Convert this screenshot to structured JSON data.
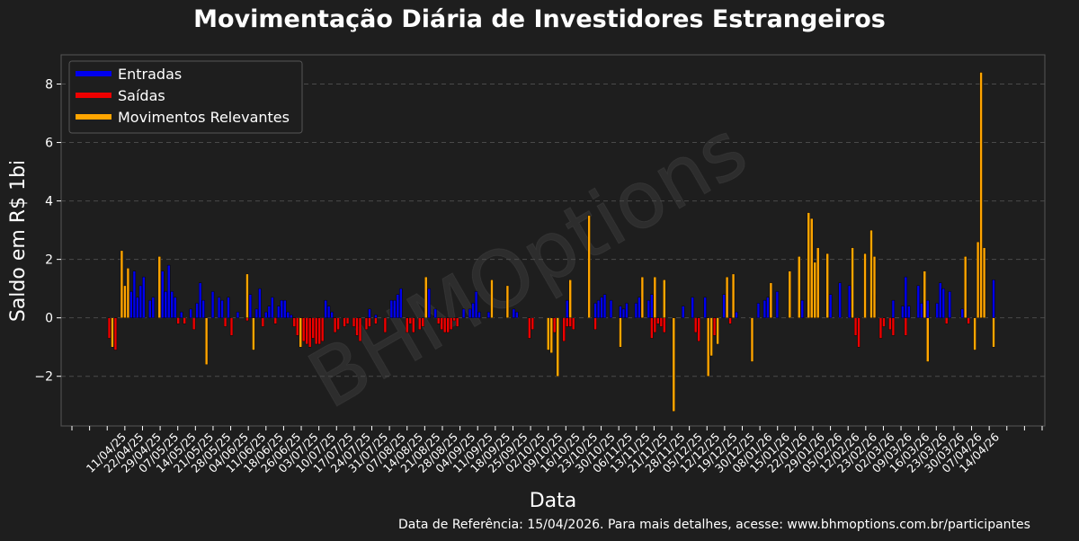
{
  "chart_data": {
    "type": "bar",
    "title": "Movimentação Diária de Investidores Estrangeiros",
    "xlabel": "Data",
    "ylabel": "Saldo em R$ 1bi",
    "ylim": [
      -3.7,
      9.0
    ],
    "yticks": [
      -2,
      0,
      2,
      4,
      6,
      8
    ],
    "ytick_labels": [
      "−2",
      "0",
      "2",
      "4",
      "6",
      "8"
    ],
    "grid": "horizontal-dashed",
    "legend_position": "top-left",
    "legend": [
      {
        "label": "Entradas",
        "color": "#0000ee"
      },
      {
        "label": "Saídas",
        "color": "#ee0000"
      },
      {
        "label": "Movimentos Relevantes",
        "color": "#ffa500"
      }
    ],
    "xtick_labels": [
      "11/04/25",
      "22/04/25",
      "29/04/25",
      "07/05/25",
      "14/05/25",
      "21/05/25",
      "28/05/25",
      "04/06/25",
      "11/06/25",
      "18/06/25",
      "26/06/25",
      "03/07/25",
      "10/07/25",
      "17/07/25",
      "24/07/25",
      "31/07/25",
      "07/08/25",
      "14/08/25",
      "21/08/25",
      "28/08/25",
      "04/09/25",
      "11/09/25",
      "18/09/25",
      "25/09/25",
      "02/10/25",
      "09/10/25",
      "16/10/25",
      "23/10/25",
      "30/10/25",
      "06/11/25",
      "13/11/25",
      "21/11/25",
      "28/11/25",
      "05/12/25",
      "12/12/25",
      "19/12/25",
      "30/12/25",
      "08/01/26",
      "15/01/26",
      "22/01/26",
      "29/01/26",
      "05/02/26",
      "12/02/26",
      "23/02/26",
      "02/03/26",
      "09/03/26",
      "16/03/26",
      "23/03/26",
      "30/03/26",
      "07/04/26",
      "14/04/26"
    ],
    "series": [
      {
        "name": "Entradas",
        "color": "#0000ee",
        "values": [
          0.0,
          0.0,
          0.0,
          0.0,
          0.0,
          0.0,
          0.0,
          0.0,
          0.9,
          1.6,
          0.7,
          1.1,
          1.4,
          0.0,
          0.6,
          0.7,
          0.0,
          0.0,
          1.6,
          0.9,
          1.8,
          0.9,
          0.7,
          0.0,
          0.2,
          0.0,
          0.0,
          0.3,
          0.0,
          0.5,
          1.2,
          0.6,
          0.0,
          0.0,
          0.9,
          0.0,
          0.7,
          0.6,
          0.0,
          0.7,
          0.0,
          0.0,
          0.2,
          0.0,
          0.0,
          0.0,
          0.8,
          0.0,
          0.3,
          1.0,
          0.0,
          0.2,
          0.4,
          0.7,
          0.0,
          0.4,
          0.6,
          0.6,
          0.2,
          0.1,
          0.0,
          0.0,
          0.0,
          0.0,
          0.0,
          0.0,
          0.0,
          0.0,
          0.0,
          0.0,
          0.6,
          0.4,
          0.2,
          0.0,
          0.0,
          0.0,
          0.0,
          0.0,
          0.0,
          0.0,
          0.0,
          0.0,
          0.0,
          0.0,
          0.3,
          0.0,
          0.1,
          0.0,
          0.0,
          0.0,
          0.0,
          0.6,
          0.6,
          0.8,
          1.0,
          0.0,
          0.0,
          0.0,
          0.0,
          0.0,
          0.0,
          0.0,
          0.0,
          1.0,
          0.0,
          0.3,
          0.0,
          0.0,
          0.0,
          0.0,
          0.0,
          0.0,
          0.0,
          0.0,
          0.3,
          0.0,
          0.3,
          0.5,
          0.9,
          0.2,
          0.0,
          0.0,
          0.2,
          0.3,
          0.0,
          0.0,
          0.0,
          0.0,
          0.5,
          0.0,
          0.3,
          0.2,
          0.0,
          0.0,
          0.0,
          0.0,
          0.0,
          0.0,
          0.0,
          0.0,
          0.0,
          0.0,
          0.0,
          0.0,
          0.0,
          0.0,
          0.0,
          0.6,
          0.0,
          0.0,
          0.0,
          0.0,
          0.0,
          0.0,
          0.0,
          0.0,
          0.5,
          0.6,
          0.7,
          0.8,
          0.0,
          0.6,
          0.0,
          0.0,
          0.4,
          0.3,
          0.5,
          0.0,
          0.0,
          0.5,
          0.7,
          0.8,
          0.0,
          0.6,
          0.8,
          0.0,
          0.0,
          0.0,
          0.0,
          0.0,
          0.0,
          0.0,
          0.0,
          0.0,
          0.4,
          0.0,
          0.0,
          0.7,
          0.0,
          0.0,
          0.0,
          0.7,
          0.0,
          0.0,
          0.0,
          0.0,
          0.0,
          0.8,
          0.0,
          0.0,
          0.0,
          0.2,
          0.0,
          0.0,
          0.0,
          0.0,
          0.0,
          0.0,
          0.5,
          0.0,
          0.6,
          0.7,
          0.7,
          0.0,
          0.9,
          0.0,
          0.0,
          0.0,
          0.0,
          0.0,
          0.0,
          1.1,
          0.6,
          0.0,
          0.0,
          0.0,
          0.0,
          1.3,
          0.0,
          0.0,
          0.5,
          0.8,
          0.0,
          0.0,
          1.2,
          0.0,
          0.0,
          1.1,
          0.4,
          0.0,
          0.0,
          0.0,
          0.0,
          0.0,
          0.0,
          0.8,
          0.0,
          0.0,
          0.0,
          0.0,
          0.0,
          0.6,
          0.0,
          0.0,
          0.4,
          1.4,
          0.4,
          0.0,
          0.0,
          1.1,
          0.5,
          0.6,
          0.6,
          0.0,
          0.0,
          0.5,
          1.2,
          1.0,
          0.0,
          0.9,
          0.0,
          0.0,
          0.0,
          0.3,
          0.0,
          0.0,
          0.0,
          0.0,
          0.0,
          0.0,
          0.0,
          0.0,
          0.0,
          1.3,
          0.0,
          0.0
        ]
      },
      {
        "name": "Saídas",
        "color": "#ee0000",
        "values": [
          0.0,
          -0.7,
          0.0,
          -1.1,
          0.0,
          0.0,
          0.0,
          0.0,
          0.0,
          0.0,
          0.0,
          0.0,
          0.0,
          0.0,
          0.0,
          0.0,
          0.0,
          0.0,
          0.0,
          0.0,
          0.0,
          0.0,
          0.0,
          -0.2,
          0.0,
          -0.2,
          0.0,
          0.0,
          -0.4,
          0.0,
          0.0,
          0.0,
          0.0,
          0.0,
          0.0,
          0.0,
          0.0,
          0.0,
          -0.3,
          0.0,
          -0.6,
          0.0,
          0.0,
          0.0,
          0.0,
          -0.1,
          0.0,
          0.0,
          0.0,
          0.0,
          -0.3,
          0.0,
          0.0,
          0.0,
          -0.2,
          0.0,
          0.0,
          0.0,
          0.0,
          0.0,
          -0.3,
          -0.6,
          0.0,
          -0.8,
          -0.9,
          -1.0,
          -0.7,
          -0.9,
          -0.9,
          -0.8,
          0.0,
          0.0,
          0.0,
          -0.5,
          -0.4,
          0.0,
          -0.3,
          -0.2,
          0.0,
          -0.3,
          -0.6,
          -0.8,
          0.0,
          -0.4,
          -0.3,
          0.0,
          -0.2,
          0.0,
          0.0,
          -0.5,
          0.0,
          0.0,
          0.0,
          0.0,
          0.0,
          0.0,
          -0.5,
          -0.2,
          -0.5,
          0.0,
          -0.4,
          -0.3,
          0.0,
          0.0,
          0.0,
          0.0,
          -0.2,
          -0.4,
          -0.5,
          -0.5,
          -0.4,
          -0.1,
          -0.3,
          0.0,
          0.0,
          0.0,
          0.0,
          0.0,
          0.0,
          0.0,
          0.0,
          0.0,
          0.0,
          0.0,
          0.0,
          0.0,
          0.0,
          0.0,
          0.0,
          0.0,
          0.0,
          0.0,
          0.0,
          0.0,
          0.0,
          -0.7,
          -0.4,
          0.0,
          0.0,
          0.0,
          0.0,
          0.0,
          0.0,
          -0.5,
          0.0,
          0.0,
          -0.8,
          -0.3,
          -0.3,
          -0.4,
          0.0,
          0.0,
          0.0,
          0.0,
          0.0,
          0.0,
          -0.4,
          0.0,
          0.0,
          0.0,
          0.0,
          0.0,
          0.0,
          0.0,
          -0.2,
          0.0,
          0.0,
          0.0,
          0.0,
          0.0,
          0.0,
          0.0,
          0.0,
          0.0,
          -0.7,
          -0.5,
          -0.2,
          -0.3,
          -0.5,
          0.0,
          0.0,
          -0.2,
          0.0,
          0.0,
          0.0,
          0.0,
          0.0,
          0.0,
          -0.5,
          -0.8,
          0.0,
          0.0,
          -0.3,
          0.0,
          -0.6,
          0.0,
          0.0,
          0.0,
          0.0,
          -0.2,
          0.0,
          0.0,
          0.0,
          0.0,
          0.0,
          0.0,
          0.0,
          0.0,
          0.0,
          0.0,
          0.0,
          0.0,
          0.0,
          0.0,
          0.0,
          0.0,
          0.0,
          0.0,
          0.0,
          0.0,
          0.0,
          0.0,
          0.0,
          0.0,
          0.0,
          0.0,
          0.0,
          0.0,
          0.0,
          0.0,
          0.0,
          0.0,
          0.0,
          0.0,
          0.0,
          0.0,
          0.0,
          0.0,
          0.0,
          -0.6,
          -1.0,
          0.0,
          0.0,
          0.0,
          0.0,
          0.0,
          0.0,
          -0.7,
          -0.3,
          0.0,
          -0.4,
          -0.6,
          0.0,
          0.0,
          0.0,
          -0.6,
          0.0,
          0.0,
          0.0,
          0.0,
          0.0,
          0.0,
          0.0,
          0.0,
          0.0,
          0.0,
          0.0,
          0.0,
          -0.2,
          0.0,
          0.0,
          0.0,
          0.0,
          0.0,
          0.0,
          -0.2,
          0.0,
          0.0,
          0.0,
          0.0,
          0.0,
          0.0,
          0.0,
          0.0
        ]
      },
      {
        "name": "Movimentos Relevantes",
        "color": "#ffa500",
        "values": [
          0.0,
          0.0,
          -1.0,
          0.0,
          0.0,
          2.3,
          1.1,
          1.7,
          0.0,
          0.0,
          0.0,
          0.0,
          0.0,
          0.0,
          0.0,
          0.0,
          0.0,
          2.1,
          0.0,
          0.0,
          0.0,
          0.0,
          0.0,
          0.0,
          0.0,
          0.0,
          0.0,
          0.0,
          0.0,
          0.0,
          0.0,
          0.0,
          -1.6,
          0.0,
          0.0,
          0.0,
          0.0,
          0.0,
          0.0,
          0.0,
          0.0,
          0.0,
          0.0,
          0.0,
          0.0,
          1.5,
          0.0,
          -1.1,
          0.0,
          0.0,
          0.0,
          0.0,
          0.0,
          0.0,
          0.0,
          0.0,
          0.0,
          0.0,
          0.0,
          0.0,
          0.0,
          0.0,
          -1.0,
          0.0,
          0.0,
          0.0,
          0.0,
          0.0,
          0.0,
          0.0,
          0.0,
          0.0,
          0.0,
          0.0,
          0.0,
          0.0,
          0.0,
          0.0,
          0.0,
          0.0,
          0.0,
          0.0,
          0.0,
          0.0,
          0.0,
          0.0,
          0.0,
          0.0,
          0.0,
          0.0,
          0.0,
          0.0,
          0.0,
          0.0,
          0.0,
          0.0,
          0.0,
          0.0,
          0.0,
          0.0,
          0.0,
          0.0,
          1.4,
          0.0,
          0.0,
          0.0,
          0.0,
          0.0,
          0.0,
          0.0,
          0.0,
          0.0,
          0.0,
          0.0,
          0.0,
          0.0,
          0.0,
          0.0,
          0.0,
          0.0,
          0.0,
          0.0,
          0.0,
          1.3,
          0.0,
          0.0,
          0.0,
          0.0,
          1.1,
          0.0,
          0.0,
          0.0,
          0.0,
          0.0,
          0.0,
          0.0,
          0.0,
          0.0,
          0.0,
          0.0,
          0.0,
          -1.1,
          -1.2,
          0.0,
          -2.0,
          0.0,
          0.0,
          0.0,
          1.3,
          0.0,
          0.0,
          0.0,
          0.0,
          0.0,
          3.5,
          0.0,
          0.0,
          0.0,
          0.0,
          0.0,
          0.0,
          0.0,
          0.0,
          0.0,
          -1.0,
          0.0,
          0.0,
          0.0,
          0.0,
          0.0,
          0.0,
          1.4,
          0.0,
          0.0,
          0.0,
          1.4,
          0.0,
          0.0,
          1.3,
          0.0,
          0.0,
          -3.2,
          0.0,
          0.0,
          0.0,
          0.0,
          0.0,
          0.0,
          0.0,
          0.0,
          0.0,
          0.0,
          -2.0,
          -1.3,
          0.0,
          -0.9,
          0.0,
          0.0,
          1.4,
          0.0,
          1.5,
          0.0,
          0.0,
          0.0,
          0.0,
          0.0,
          -1.5,
          0.0,
          0.0,
          0.0,
          0.0,
          0.0,
          1.2,
          0.0,
          0.0,
          0.0,
          0.0,
          0.0,
          1.6,
          0.0,
          0.0,
          2.1,
          0.0,
          0.0,
          3.6,
          3.4,
          1.9,
          2.4,
          0.0,
          0.0,
          2.2,
          0.0,
          0.0,
          0.0,
          0.0,
          0.0,
          0.0,
          0.0,
          2.4,
          0.0,
          0.0,
          0.0,
          2.2,
          0.0,
          3.0,
          2.1,
          0.0,
          0.0,
          0.0,
          0.0,
          0.0,
          0.0,
          0.0,
          0.0,
          0.0,
          0.0,
          0.0,
          0.0,
          0.0,
          0.0,
          0.0,
          1.6,
          -1.5,
          0.0,
          0.0,
          0.0,
          0.0,
          0.0,
          0.0,
          0.0,
          0.0,
          0.0,
          0.0,
          0.0,
          2.1,
          0.0,
          0.0,
          -1.1,
          2.6,
          8.4,
          2.4,
          0.0,
          0.0,
          -1.0
        ]
      }
    ]
  },
  "watermark": "BHMOptions",
  "footer": "Data de Referência: 15/04/2026. Para mais detalhes, acesse: www.bhmoptions.com.br/participantes"
}
